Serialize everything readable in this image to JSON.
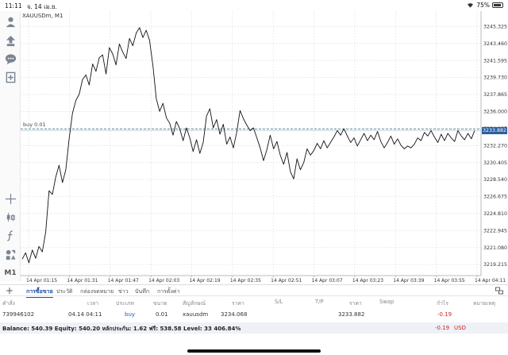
{
  "status_bar": {
    "time": "11:11",
    "date": "จ. 14 เม.ย.",
    "battery": "75%"
  },
  "chart": {
    "symbol": "XAUUSDm, M1",
    "trade_line_label": "buy 0.01",
    "bid_price_tag": "3233.882",
    "colors": {
      "line": "#111111",
      "grid": "#d5d5d5",
      "bid": "#2b5f9e",
      "trade_line": "#5f9a96"
    }
  },
  "chart_data": {
    "type": "line",
    "ylim": [
      3218.0,
      3247.0
    ],
    "price_axis_ticks": [
      "3245.325",
      "3243.460",
      "3241.595",
      "3239.730",
      "3237.865",
      "3236.000",
      "3234.135",
      "3232.270",
      "3230.405",
      "3228.540",
      "3226.675",
      "3224.810",
      "3222.945",
      "3221.080",
      "3219.215"
    ],
    "time_axis_ticks": [
      "14 Apr 01:15",
      "14 Apr 01:31",
      "14 Apr 01:47",
      "14 Apr 02:03",
      "14 Apr 02:19",
      "14 Apr 02:35",
      "14 Apr 02:51",
      "14 Apr 03:07",
      "14 Apr 03:23",
      "14 Apr 03:39",
      "14 Apr 03:55",
      "14 Apr 04:11"
    ],
    "trade_line_price": 3234.068,
    "bid_price": 3233.882,
    "series": [
      {
        "values": [
          3219.8,
          3220.5,
          3219.4,
          3220.8,
          3219.9,
          3221.2,
          3220.6,
          3222.8,
          3227.3,
          3226.9,
          3228.8,
          3230.1,
          3228.2,
          3229.6,
          3233.0,
          3235.8,
          3237.2,
          3237.9,
          3239.5,
          3240.0,
          3238.9,
          3241.2,
          3240.4,
          3241.9,
          3242.2,
          3240.1,
          3243.0,
          3242.3,
          3241.1,
          3243.4,
          3242.5,
          3241.8,
          3244.0,
          3243.2,
          3244.6,
          3245.2,
          3244.1,
          3244.9,
          3243.8,
          3241.0,
          3237.4,
          3236.0,
          3236.9,
          3235.3,
          3234.7,
          3233.4,
          3234.9,
          3234.1,
          3232.8,
          3234.2,
          3233.1,
          3231.6,
          3232.9,
          3231.4,
          3232.6,
          3235.5,
          3236.3,
          3234.2,
          3235.1,
          3233.5,
          3234.6,
          3232.4,
          3233.2,
          3232.0,
          3233.7,
          3236.1,
          3235.2,
          3234.5,
          3233.9,
          3234.2,
          3233.1,
          3232.0,
          3230.6,
          3231.8,
          3233.4,
          3231.9,
          3232.7,
          3231.2,
          3230.2,
          3231.5,
          3229.4,
          3228.6,
          3230.8,
          3229.6,
          3230.4,
          3231.9,
          3231.2,
          3231.7,
          3232.5,
          3231.9,
          3232.8,
          3232.0,
          3232.6,
          3233.2,
          3233.9,
          3233.4,
          3234.1,
          3233.3,
          3232.6,
          3233.1,
          3232.2,
          3232.9,
          3233.6,
          3232.8,
          3233.4,
          3232.9,
          3233.8,
          3232.7,
          3232.0,
          3232.6,
          3233.3,
          3232.4,
          3233.0,
          3232.3,
          3231.9,
          3232.2,
          3232.0,
          3232.4,
          3233.1,
          3232.8,
          3233.7,
          3233.3,
          3233.9,
          3233.2,
          3232.6,
          3233.5,
          3232.8,
          3233.6,
          3233.1,
          3232.7,
          3233.9,
          3233.3,
          3232.9,
          3233.6,
          3233.0,
          3233.9
        ]
      }
    ]
  },
  "toolbar_icons": [
    "account-icon",
    "trade-icon",
    "chat-icon",
    "new-chart-icon",
    "crosshair-icon",
    "candles-icon",
    "indicator-icon",
    "objects-icon"
  ],
  "timeframe": "M1",
  "tabs": {
    "add": "+",
    "items": [
      "การซื้อขาย",
      "ประวัติ",
      "กล่องจดหมาย",
      "ข่าว",
      "บันทึก",
      "การตั้งค่า"
    ]
  },
  "table": {
    "headers": {
      "order": "คำสั่ง",
      "time": "เวลา",
      "type": "ประเภท",
      "volume": "ขนาด",
      "symbol": "สัญลักษณ์",
      "price": "ราคา",
      "sl": "S/L",
      "tp": "T/P",
      "current_price": "ราคา",
      "swap": "Swap",
      "profit": "กำไร",
      "comment": "หมายเหตุ"
    },
    "row": {
      "order": "739946102",
      "time": "04.14 04:11",
      "type": "buy",
      "volume": "0.01",
      "symbol": "xauusdm",
      "price": "3234.068",
      "current_price": "3233.882",
      "profit": "-0.19"
    }
  },
  "balance": {
    "summary": "Balance: 540.39 Equity: 540.20 หลักประกัน: 1.62 ฟรี: 538.58 Level: 33 406.84%",
    "profit": "-0.19",
    "currency": "USD"
  }
}
